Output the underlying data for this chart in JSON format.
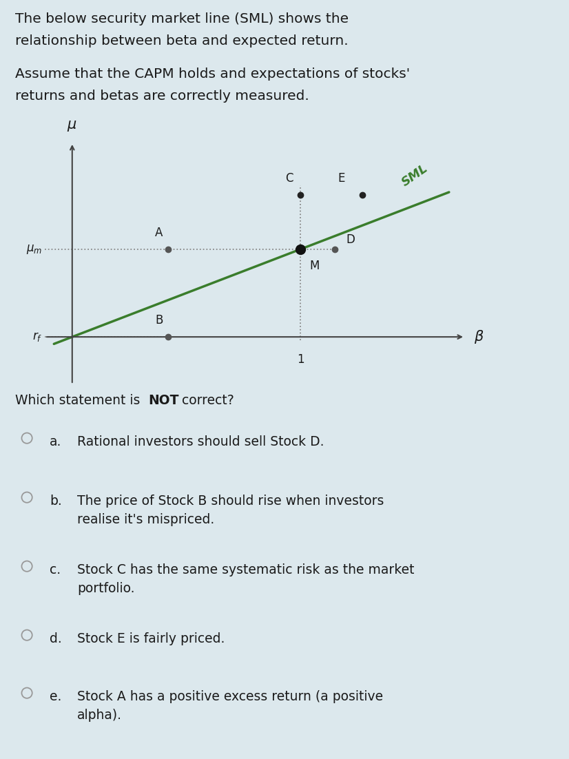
{
  "bg_color": "#dce8ed",
  "title_lines": [
    "The below security market line (SML) shows the",
    "relationship between beta and expected return.",
    "",
    "Assume that the CAPM holds and expectations of stocks'",
    "returns and betas are correctly measured."
  ],
  "question_pre": "Which statement is ",
  "question_bold": "NOT",
  "question_post": " correct?",
  "sml_color": "#3a7d2c",
  "sml_label": "SML",
  "axis_color": "#444444",
  "dotted_color": "#888888",
  "rf": 0.18,
  "mu_m": 0.55,
  "stocks": {
    "A": {
      "beta": 0.42,
      "mu": 0.55,
      "lox": -0.04,
      "loy": 0.07
    },
    "B": {
      "beta": 0.42,
      "mu": 0.18,
      "lox": -0.04,
      "loy": 0.07
    },
    "C": {
      "beta": 1.0,
      "mu": 0.78,
      "lox": -0.05,
      "loy": 0.07
    },
    "D": {
      "beta": 1.15,
      "mu": 0.55,
      "lox": 0.07,
      "loy": 0.04
    },
    "E": {
      "beta": 1.27,
      "mu": 0.78,
      "lox": -0.09,
      "loy": 0.07
    },
    "M": {
      "beta": 1.0,
      "mu": 0.55,
      "lox": 0.06,
      "loy": -0.07
    }
  },
  "dot_colors": {
    "A": "#555555",
    "B": "#555555",
    "C": "#222222",
    "D": "#555555",
    "E": "#222222",
    "M": "#111111"
  },
  "dot_sizes": {
    "A": 6,
    "B": 6,
    "C": 6,
    "D": 6,
    "E": 6,
    "M": 10
  },
  "choices": [
    {
      "letter": "a.",
      "text": "Rational investors should sell Stock D."
    },
    {
      "letter": "b.",
      "text": "The price of Stock B should rise when investors\nrealise it's mispriced."
    },
    {
      "letter": "c.",
      "text": "Stock C has the same systematic risk as the market\nportfolio."
    },
    {
      "letter": "d.",
      "text": "Stock E is fairly priced."
    },
    {
      "letter": "e.",
      "text": "Stock A has a positive excess return (a positive\nalpha)."
    }
  ],
  "text_color": "#1a1a1a",
  "title_fontsize": 14.5,
  "label_fontsize": 13.5,
  "choice_fontsize": 13.5
}
